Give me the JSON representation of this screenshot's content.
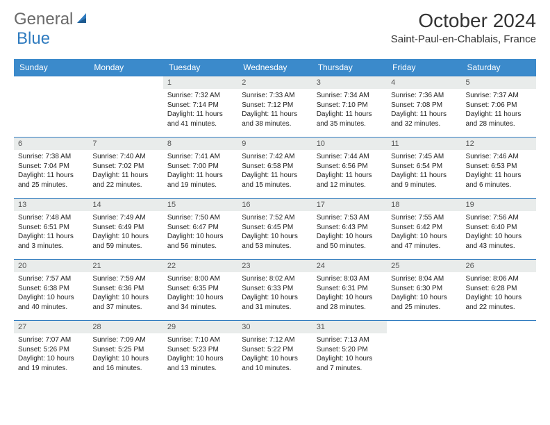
{
  "logo": {
    "word1": "General",
    "word2": "Blue"
  },
  "title": {
    "month": "October 2024",
    "location": "Saint-Paul-en-Chablais, France"
  },
  "colors": {
    "header_bg": "#3b8acb",
    "header_fg": "#ffffff",
    "daynum_bg": "#e9eceb",
    "row_border": "#2f7bbf",
    "logo_gray": "#6a6a6a",
    "logo_blue": "#2f7bbf"
  },
  "weekdays": [
    "Sunday",
    "Monday",
    "Tuesday",
    "Wednesday",
    "Thursday",
    "Friday",
    "Saturday"
  ],
  "weeks": [
    [
      null,
      null,
      {
        "n": "1",
        "sr": "7:32 AM",
        "ss": "7:14 PM",
        "dl": "11 hours and 41 minutes."
      },
      {
        "n": "2",
        "sr": "7:33 AM",
        "ss": "7:12 PM",
        "dl": "11 hours and 38 minutes."
      },
      {
        "n": "3",
        "sr": "7:34 AM",
        "ss": "7:10 PM",
        "dl": "11 hours and 35 minutes."
      },
      {
        "n": "4",
        "sr": "7:36 AM",
        "ss": "7:08 PM",
        "dl": "11 hours and 32 minutes."
      },
      {
        "n": "5",
        "sr": "7:37 AM",
        "ss": "7:06 PM",
        "dl": "11 hours and 28 minutes."
      }
    ],
    [
      {
        "n": "6",
        "sr": "7:38 AM",
        "ss": "7:04 PM",
        "dl": "11 hours and 25 minutes."
      },
      {
        "n": "7",
        "sr": "7:40 AM",
        "ss": "7:02 PM",
        "dl": "11 hours and 22 minutes."
      },
      {
        "n": "8",
        "sr": "7:41 AM",
        "ss": "7:00 PM",
        "dl": "11 hours and 19 minutes."
      },
      {
        "n": "9",
        "sr": "7:42 AM",
        "ss": "6:58 PM",
        "dl": "11 hours and 15 minutes."
      },
      {
        "n": "10",
        "sr": "7:44 AM",
        "ss": "6:56 PM",
        "dl": "11 hours and 12 minutes."
      },
      {
        "n": "11",
        "sr": "7:45 AM",
        "ss": "6:54 PM",
        "dl": "11 hours and 9 minutes."
      },
      {
        "n": "12",
        "sr": "7:46 AM",
        "ss": "6:53 PM",
        "dl": "11 hours and 6 minutes."
      }
    ],
    [
      {
        "n": "13",
        "sr": "7:48 AM",
        "ss": "6:51 PM",
        "dl": "11 hours and 3 minutes."
      },
      {
        "n": "14",
        "sr": "7:49 AM",
        "ss": "6:49 PM",
        "dl": "10 hours and 59 minutes."
      },
      {
        "n": "15",
        "sr": "7:50 AM",
        "ss": "6:47 PM",
        "dl": "10 hours and 56 minutes."
      },
      {
        "n": "16",
        "sr": "7:52 AM",
        "ss": "6:45 PM",
        "dl": "10 hours and 53 minutes."
      },
      {
        "n": "17",
        "sr": "7:53 AM",
        "ss": "6:43 PM",
        "dl": "10 hours and 50 minutes."
      },
      {
        "n": "18",
        "sr": "7:55 AM",
        "ss": "6:42 PM",
        "dl": "10 hours and 47 minutes."
      },
      {
        "n": "19",
        "sr": "7:56 AM",
        "ss": "6:40 PM",
        "dl": "10 hours and 43 minutes."
      }
    ],
    [
      {
        "n": "20",
        "sr": "7:57 AM",
        "ss": "6:38 PM",
        "dl": "10 hours and 40 minutes."
      },
      {
        "n": "21",
        "sr": "7:59 AM",
        "ss": "6:36 PM",
        "dl": "10 hours and 37 minutes."
      },
      {
        "n": "22",
        "sr": "8:00 AM",
        "ss": "6:35 PM",
        "dl": "10 hours and 34 minutes."
      },
      {
        "n": "23",
        "sr": "8:02 AM",
        "ss": "6:33 PM",
        "dl": "10 hours and 31 minutes."
      },
      {
        "n": "24",
        "sr": "8:03 AM",
        "ss": "6:31 PM",
        "dl": "10 hours and 28 minutes."
      },
      {
        "n": "25",
        "sr": "8:04 AM",
        "ss": "6:30 PM",
        "dl": "10 hours and 25 minutes."
      },
      {
        "n": "26",
        "sr": "8:06 AM",
        "ss": "6:28 PM",
        "dl": "10 hours and 22 minutes."
      }
    ],
    [
      {
        "n": "27",
        "sr": "7:07 AM",
        "ss": "5:26 PM",
        "dl": "10 hours and 19 minutes."
      },
      {
        "n": "28",
        "sr": "7:09 AM",
        "ss": "5:25 PM",
        "dl": "10 hours and 16 minutes."
      },
      {
        "n": "29",
        "sr": "7:10 AM",
        "ss": "5:23 PM",
        "dl": "10 hours and 13 minutes."
      },
      {
        "n": "30",
        "sr": "7:12 AM",
        "ss": "5:22 PM",
        "dl": "10 hours and 10 minutes."
      },
      {
        "n": "31",
        "sr": "7:13 AM",
        "ss": "5:20 PM",
        "dl": "10 hours and 7 minutes."
      },
      null,
      null
    ]
  ],
  "labels": {
    "sunrise": "Sunrise: ",
    "sunset": "Sunset: ",
    "daylight": "Daylight: "
  }
}
